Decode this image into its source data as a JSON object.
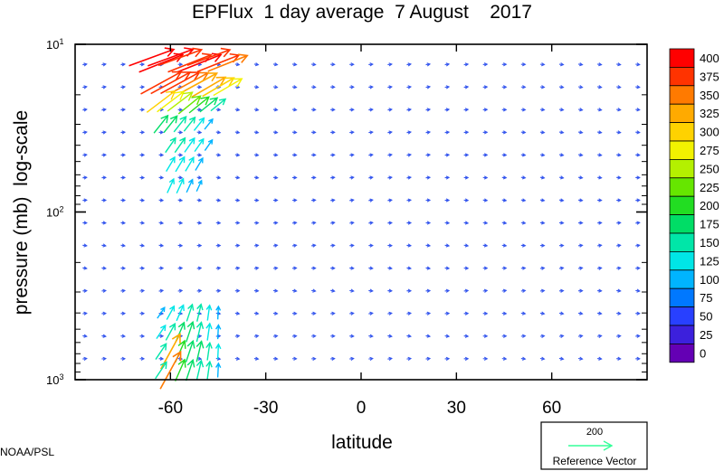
{
  "chart_data": {
    "type": "vector",
    "title": "EPFlux  1 day average  7 August    2017",
    "xlabel": "latitude",
    "ylabel": "pressure (mb)  log-scale",
    "xlim": [
      -90,
      90
    ],
    "ylim": [
      1000,
      10
    ],
    "yscale": "log",
    "x_ticks": [
      -60,
      -30,
      0,
      30,
      60
    ],
    "x_tick_labels": [
      "-60",
      "-30",
      "0",
      "30",
      "60"
    ],
    "y_ticks": [
      {
        "value": 10,
        "base": "10",
        "exp": "1"
      },
      {
        "value": 100,
        "base": "10",
        "exp": "2"
      },
      {
        "value": 1000,
        "base": "10",
        "exp": "3"
      }
    ],
    "colorbar": {
      "levels": [
        "400",
        "375",
        "350",
        "325",
        "300",
        "275",
        "250",
        "225",
        "200",
        "175",
        "150",
        "125",
        "100",
        "75",
        "50",
        "25",
        "0"
      ],
      "colors": [
        "#ff0000",
        "#ff3300",
        "#ff7a00",
        "#ffaa00",
        "#ffd200",
        "#f2f200",
        "#b4f000",
        "#66e600",
        "#22dd22",
        "#00dd66",
        "#00e6a8",
        "#00e6e6",
        "#00b4ff",
        "#0078ff",
        "#2840ff",
        "#3c20dc",
        "#6400b4"
      ]
    },
    "reference_vector": {
      "value": "200",
      "label": "Reference Vector",
      "color": "#33ff99"
    },
    "vectors": [
      {
        "lat": -66,
        "p": 12,
        "mag": 405
      },
      {
        "lat": -63,
        "p": 13,
        "mag": 400
      },
      {
        "lat": -60,
        "p": 12,
        "mag": 410
      },
      {
        "lat": -57,
        "p": 12,
        "mag": 390
      },
      {
        "lat": -54,
        "p": 13,
        "mag": 395
      },
      {
        "lat": -51,
        "p": 13,
        "mag": 400
      },
      {
        "lat": -48,
        "p": 12,
        "mag": 385
      },
      {
        "lat": -45,
        "p": 13,
        "mag": 380
      },
      {
        "lat": -42,
        "p": 13,
        "mag": 360
      },
      {
        "lat": -63,
        "p": 17,
        "mag": 390
      },
      {
        "lat": -60,
        "p": 17,
        "mag": 380
      },
      {
        "lat": -57,
        "p": 17,
        "mag": 375
      },
      {
        "lat": -54,
        "p": 17,
        "mag": 360
      },
      {
        "lat": -51,
        "p": 17,
        "mag": 345
      },
      {
        "lat": -48,
        "p": 18,
        "mag": 330
      },
      {
        "lat": -45,
        "p": 18,
        "mag": 310
      },
      {
        "lat": -42,
        "p": 18,
        "mag": 280
      },
      {
        "lat": -63,
        "p": 22,
        "mag": 300
      },
      {
        "lat": -60,
        "p": 22,
        "mag": 285
      },
      {
        "lat": -57,
        "p": 22,
        "mag": 265
      },
      {
        "lat": -54,
        "p": 23,
        "mag": 240
      },
      {
        "lat": -51,
        "p": 23,
        "mag": 215
      },
      {
        "lat": -48,
        "p": 23,
        "mag": 190
      },
      {
        "lat": -45,
        "p": 23,
        "mag": 160
      },
      {
        "lat": -63,
        "p": 30,
        "mag": 190
      },
      {
        "lat": -60,
        "p": 30,
        "mag": 180
      },
      {
        "lat": -57,
        "p": 30,
        "mag": 165
      },
      {
        "lat": -54,
        "p": 30,
        "mag": 150
      },
      {
        "lat": -51,
        "p": 30,
        "mag": 135
      },
      {
        "lat": -48,
        "p": 30,
        "mag": 110
      },
      {
        "lat": -60,
        "p": 40,
        "mag": 150
      },
      {
        "lat": -57,
        "p": 40,
        "mag": 150
      },
      {
        "lat": -54,
        "p": 40,
        "mag": 145
      },
      {
        "lat": -51,
        "p": 40,
        "mag": 130
      },
      {
        "lat": -48,
        "p": 40,
        "mag": 110
      },
      {
        "lat": -60,
        "p": 52,
        "mag": 140
      },
      {
        "lat": -57,
        "p": 52,
        "mag": 145
      },
      {
        "lat": -54,
        "p": 52,
        "mag": 135
      },
      {
        "lat": -51,
        "p": 52,
        "mag": 120
      },
      {
        "lat": -60,
        "p": 70,
        "mag": 130
      },
      {
        "lat": -57,
        "p": 70,
        "mag": 135
      },
      {
        "lat": -54,
        "p": 70,
        "mag": 120
      },
      {
        "lat": -51,
        "p": 70,
        "mag": 100
      },
      {
        "lat": -63,
        "p": 400,
        "mag": 110
      },
      {
        "lat": -60,
        "p": 400,
        "mag": 130
      },
      {
        "lat": -57,
        "p": 400,
        "mag": 145
      },
      {
        "lat": -54,
        "p": 400,
        "mag": 150
      },
      {
        "lat": -51,
        "p": 400,
        "mag": 150
      },
      {
        "lat": -48,
        "p": 400,
        "mag": 130
      },
      {
        "lat": -45,
        "p": 400,
        "mag": 110
      },
      {
        "lat": -63,
        "p": 520,
        "mag": 135
      },
      {
        "lat": -60,
        "p": 520,
        "mag": 160
      },
      {
        "lat": -57,
        "p": 520,
        "mag": 175
      },
      {
        "lat": -54,
        "p": 520,
        "mag": 180
      },
      {
        "lat": -51,
        "p": 520,
        "mag": 170
      },
      {
        "lat": -48,
        "p": 520,
        "mag": 145
      },
      {
        "lat": -45,
        "p": 520,
        "mag": 120
      },
      {
        "lat": -63,
        "p": 680,
        "mag": 160
      },
      {
        "lat": -60,
        "p": 680,
        "mag": 340
      },
      {
        "lat": -57,
        "p": 680,
        "mag": 200
      },
      {
        "lat": -54,
        "p": 680,
        "mag": 190
      },
      {
        "lat": -51,
        "p": 680,
        "mag": 180
      },
      {
        "lat": -48,
        "p": 680,
        "mag": 150
      },
      {
        "lat": -45,
        "p": 680,
        "mag": 125
      },
      {
        "lat": -63,
        "p": 880,
        "mag": 170
      },
      {
        "lat": -60,
        "p": 880,
        "mag": 360
      },
      {
        "lat": -57,
        "p": 880,
        "mag": 200
      },
      {
        "lat": -54,
        "p": 880,
        "mag": 185
      },
      {
        "lat": -51,
        "p": 880,
        "mag": 170
      },
      {
        "lat": -48,
        "p": 880,
        "mag": 150
      },
      {
        "lat": -45,
        "p": 880,
        "mag": 120
      }
    ]
  }
}
